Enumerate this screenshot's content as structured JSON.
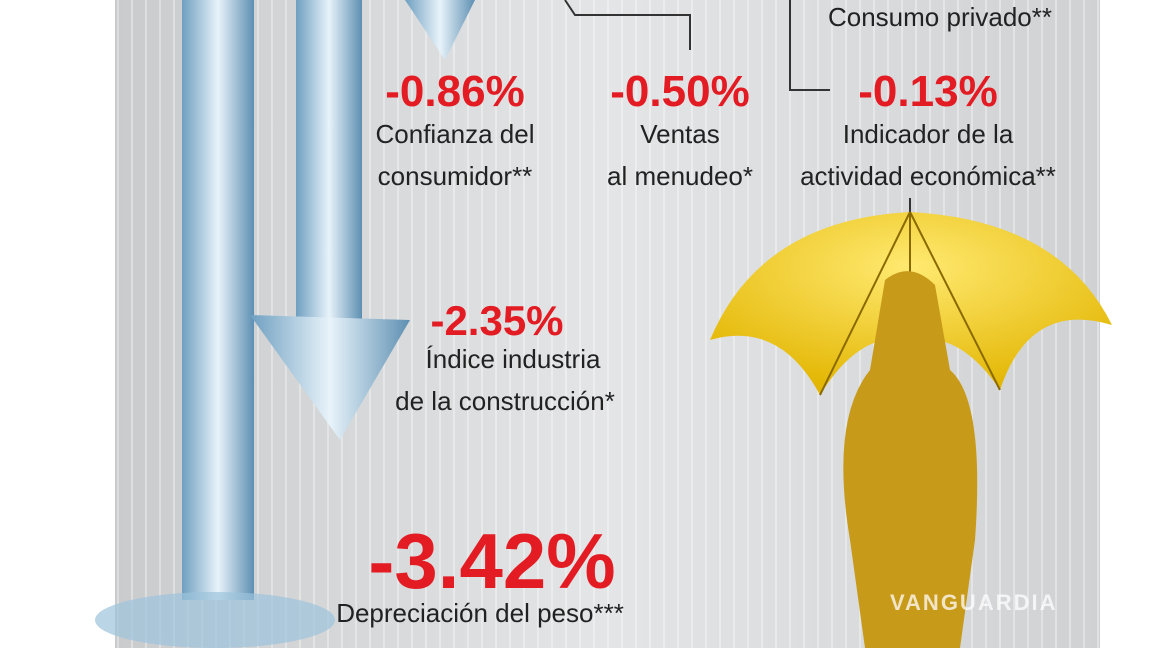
{
  "top_label": "Consumo privado**",
  "indicators": [
    {
      "value": "-0.86%",
      "label": [
        "Confianza del",
        "consumidor**"
      ]
    },
    {
      "value": "-0.50%",
      "label": [
        "Ventas",
        "al menudeo*"
      ]
    },
    {
      "value": "-0.13%",
      "label": [
        "Indicador de la",
        "actividad económica**"
      ]
    },
    {
      "value": "-2.35%",
      "label": [
        "Índice industria",
        "de la construcción*"
      ]
    },
    {
      "value": "-3.42%",
      "label": [
        "Depreciación del peso***"
      ]
    }
  ],
  "watermark": "VANGUARDIA"
}
